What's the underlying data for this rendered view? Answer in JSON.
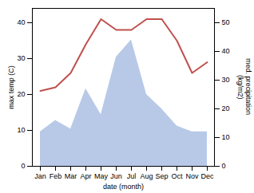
{
  "chart_data": {
    "type": "line",
    "categories": [
      "Jan",
      "Feb",
      "Mar",
      "Apr",
      "May",
      "Jun",
      "Jul",
      "Aug",
      "Sep",
      "Oct",
      "Nov",
      "Dec"
    ],
    "xlabel": "date (month)",
    "ylabel": "max temp (C)",
    "y2label": "med. precipitation\n(kg/m2)",
    "ylim": [
      0,
      44
    ],
    "yticks": [
      0,
      10,
      20,
      30,
      40
    ],
    "y2lim": [
      0,
      55
    ],
    "y2ticks": [
      0,
      10,
      20,
      30,
      40,
      50
    ],
    "series": [
      {
        "type": "line",
        "color": "#c0504d",
        "values": [
          21,
          22,
          26,
          34,
          41,
          38,
          38,
          41,
          41,
          35,
          26,
          29
        ]
      },
      {
        "type": "area",
        "color": "#b8c9e8",
        "axis": "y2",
        "values": [
          12,
          16,
          13,
          27,
          18,
          38,
          44,
          25,
          20,
          14,
          12,
          12
        ]
      }
    ]
  }
}
